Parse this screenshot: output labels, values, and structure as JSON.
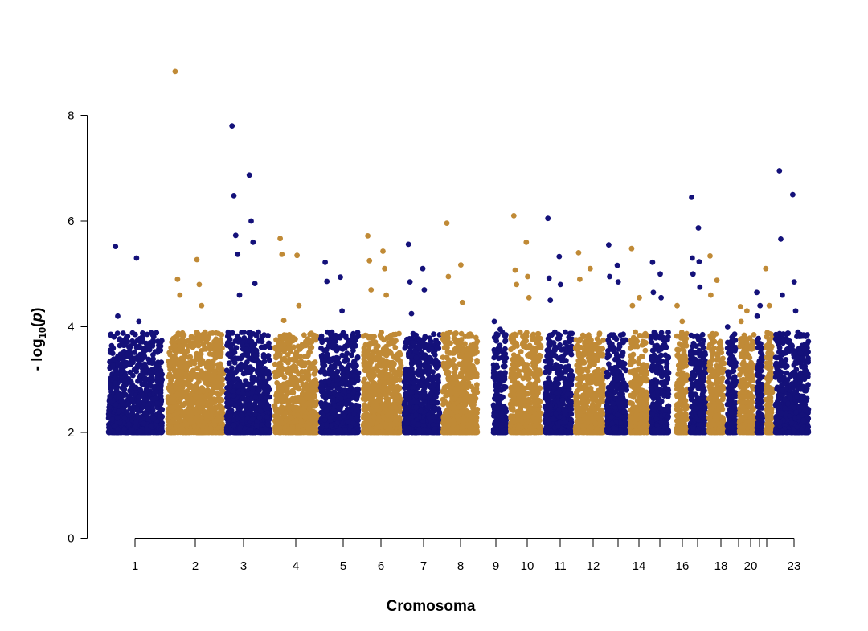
{
  "chart_data": {
    "type": "scatter",
    "subtype": "manhattan",
    "xlabel": "Cromosoma",
    "ylabel_prefix": "- log",
    "ylabel_sub": "10",
    "ylabel_paren_open": "(",
    "ylabel_var": "p",
    "ylabel_paren_close": ")",
    "ylim": [
      0,
      8.9
    ],
    "yticks": [
      0,
      2,
      4,
      6,
      8
    ],
    "threshold_min": 2,
    "colors": [
      "#14117a",
      "#c08a36"
    ],
    "chromosomes": [
      {
        "chr": "1",
        "label": "1",
        "color": "#14117a"
      },
      {
        "chr": "2",
        "label": "2",
        "color": "#c08a36"
      },
      {
        "chr": "3",
        "label": "3",
        "color": "#14117a"
      },
      {
        "chr": "4",
        "label": "4",
        "color": "#c08a36"
      },
      {
        "chr": "5",
        "label": "5",
        "color": "#14117a"
      },
      {
        "chr": "6",
        "label": "6",
        "color": "#c08a36"
      },
      {
        "chr": "7",
        "label": "7",
        "color": "#14117a"
      },
      {
        "chr": "8",
        "label": "8",
        "color": "#c08a36"
      },
      {
        "chr": "9",
        "label": "9",
        "color": "#14117a"
      },
      {
        "chr": "10",
        "label": "10",
        "color": "#c08a36"
      },
      {
        "chr": "11",
        "label": "11",
        "color": "#14117a"
      },
      {
        "chr": "12",
        "label": "12",
        "color": "#c08a36"
      },
      {
        "chr": "13",
        "label": "",
        "color": "#14117a"
      },
      {
        "chr": "14",
        "label": "14",
        "color": "#c08a36"
      },
      {
        "chr": "15",
        "label": "",
        "color": "#14117a"
      },
      {
        "chr": "16",
        "label": "16",
        "color": "#c08a36"
      },
      {
        "chr": "17",
        "label": "",
        "color": "#14117a"
      },
      {
        "chr": "18",
        "label": "18",
        "color": "#c08a36"
      },
      {
        "chr": "19",
        "label": "",
        "color": "#14117a"
      },
      {
        "chr": "20",
        "label": "20",
        "color": "#c08a36"
      },
      {
        "chr": "21",
        "label": "",
        "color": "#14117a"
      },
      {
        "chr": "22",
        "label": "",
        "color": "#c08a36"
      },
      {
        "chr": "23",
        "label": "23",
        "color": "#14117a"
      }
    ],
    "peaks": [
      {
        "chr": "1",
        "values": [
          5.52,
          5.3,
          4.2,
          4.1
        ]
      },
      {
        "chr": "2",
        "values": [
          8.83,
          5.27,
          4.9,
          4.8,
          4.6,
          4.4
        ]
      },
      {
        "chr": "3",
        "values": [
          7.8,
          6.87,
          6.48,
          6.0,
          5.73,
          5.6,
          5.37,
          4.82,
          4.6
        ]
      },
      {
        "chr": "4",
        "values": [
          5.67,
          5.35,
          5.37,
          4.4,
          4.12
        ]
      },
      {
        "chr": "5",
        "values": [
          5.22,
          4.94,
          4.86,
          4.3
        ]
      },
      {
        "chr": "6",
        "values": [
          5.72,
          5.43,
          5.25,
          5.1,
          4.7,
          4.6
        ]
      },
      {
        "chr": "7",
        "values": [
          5.56,
          5.1,
          4.85,
          4.7,
          4.25
        ]
      },
      {
        "chr": "8",
        "values": [
          5.96,
          5.17,
          4.95,
          4.46
        ]
      },
      {
        "chr": "9",
        "values": [
          4.1,
          3.95
        ]
      },
      {
        "chr": "10",
        "values": [
          6.1,
          5.6,
          5.07,
          4.95,
          4.8,
          4.55
        ]
      },
      {
        "chr": "11",
        "values": [
          6.05,
          5.33,
          4.92,
          4.8,
          4.5
        ]
      },
      {
        "chr": "12",
        "values": [
          5.4,
          5.1,
          4.9
        ]
      },
      {
        "chr": "13",
        "values": [
          5.55,
          5.16,
          4.95,
          4.85
        ]
      },
      {
        "chr": "14",
        "values": [
          5.48,
          4.55,
          4.4
        ]
      },
      {
        "chr": "15",
        "values": [
          5.22,
          5.0,
          4.65,
          4.55
        ]
      },
      {
        "chr": "16",
        "values": [
          4.4,
          4.1
        ]
      },
      {
        "chr": "17",
        "values": [
          6.45,
          5.87,
          5.3,
          5.23,
          5.0,
          4.75
        ]
      },
      {
        "chr": "18",
        "values": [
          5.34,
          4.88,
          4.6
        ]
      },
      {
        "chr": "19",
        "values": [
          4.0,
          3.8
        ]
      },
      {
        "chr": "20",
        "values": [
          4.38,
          4.3,
          4.1
        ]
      },
      {
        "chr": "21",
        "values": [
          4.65,
          4.4,
          4.2
        ]
      },
      {
        "chr": "22",
        "values": [
          5.1,
          4.4
        ]
      },
      {
        "chr": "23",
        "values": [
          6.95,
          6.5,
          5.66,
          4.85,
          4.6,
          4.3
        ]
      }
    ]
  }
}
